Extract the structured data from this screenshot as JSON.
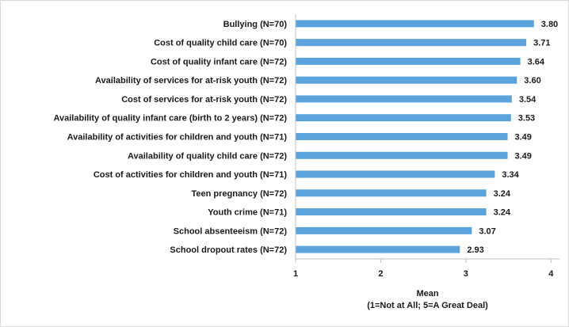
{
  "chart_data": {
    "type": "bar",
    "orientation": "horizontal",
    "categories": [
      "Bullying (N=70)",
      "Cost of quality child care (N=70)",
      "Cost of quality infant care (N=72)",
      "Availability of services for at-risk youth (N=72)",
      "Cost of services for at-risk youth (N=72)",
      "Availability of quality infant care (birth to 2 years) (N=72)",
      "Availability of activities for children and youth (N=71)",
      "Availability of quality child care (N=72)",
      "Cost of activities for children and youth (N=71)",
      "Teen pregnancy (N=72)",
      "Youth crime (N=71)",
      "School absenteeism (N=72)",
      "School dropout rates (N=72)"
    ],
    "values": [
      3.8,
      3.71,
      3.64,
      3.6,
      3.54,
      3.53,
      3.49,
      3.49,
      3.34,
      3.24,
      3.24,
      3.07,
      2.93
    ],
    "value_labels": [
      "3.80",
      "3.71",
      "3.64",
      "3.60",
      "3.54",
      "3.53",
      "3.49",
      "3.49",
      "3.34",
      "3.24",
      "3.24",
      "3.07",
      "2.93"
    ],
    "xlim": [
      1,
      4.1
    ],
    "xticks": [
      1,
      2,
      3,
      4
    ],
    "xtick_labels": [
      "1",
      "2",
      "3",
      "4"
    ],
    "xlabel": "Mean",
    "xlabel_note": "(1=Not at All; 5=A Great Deal)",
    "grid": false,
    "legend": "none",
    "bar_color": "#5ba3dc"
  }
}
